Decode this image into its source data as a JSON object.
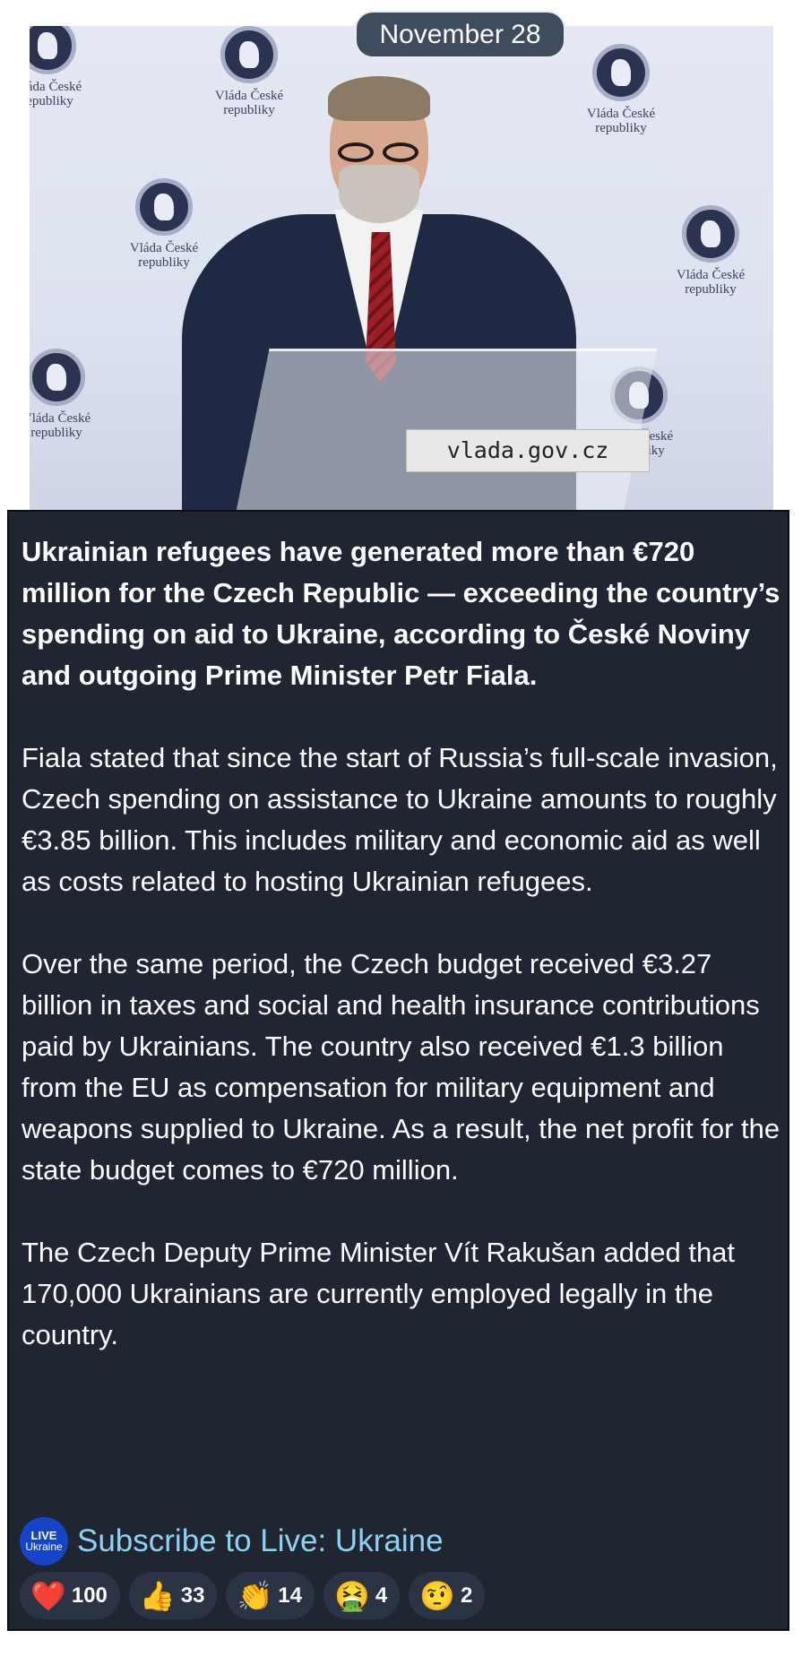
{
  "header": {
    "date": "November 28"
  },
  "photo": {
    "backdrop_logo_text": "Vláda České republiky",
    "podium_label": "vlada.gov.cz"
  },
  "post": {
    "paragraphs": [
      "Ukrainian refugees have generated more than €720 million for the Czech Republic — exceeding the country’s spending on aid to Ukraine, according to České Noviny and outgoing Prime Minister Petr Fiala.",
      "Fiala stated that since the start of Russia’s full-scale invasion, Czech spending on assistance to Ukraine amounts to roughly €3.85 billion. This includes military and economic aid as well as costs related to hosting Ukrainian refugees.",
      "Over the same period, the Czech budget received €3.27 billion in taxes and social and health insurance contributions paid by Ukrainians. The country also received €1.3 billion from the EU as compensation for military equipment and weapons supplied to Ukraine. As a result, the net profit for the state budget comes to €720 million.",
      "The Czech Deputy Prime Minister Vít Rakušan added that 170,000 Ukrainians are currently employed legally in the country."
    ],
    "channel_logo": {
      "line1": "LIVE",
      "line2": "Ukraine"
    },
    "subscribe_label": "Subscribe to Live: Ukraine",
    "link_color": "#8cd2f2"
  },
  "reactions": [
    {
      "icon": "red-heart-icon",
      "emoji": "❤️",
      "count": "100"
    },
    {
      "icon": "thumbs-up-icon",
      "emoji": "👍",
      "count": "33"
    },
    {
      "icon": "clapping-hands-icon",
      "emoji": "👏",
      "count": "14"
    },
    {
      "icon": "vomiting-face-icon",
      "emoji": "🤮",
      "count": "4"
    },
    {
      "icon": "face-with-raised-eyebrow-icon",
      "emoji": "🤨",
      "count": "2"
    }
  ]
}
